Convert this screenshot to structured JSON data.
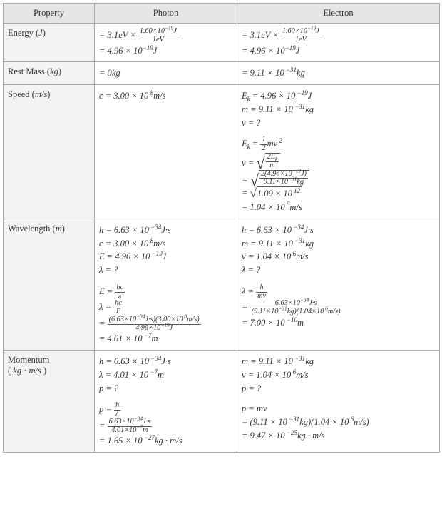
{
  "table": {
    "header_bg": "#e6e6e6",
    "prop_bg": "#f3f3f3",
    "border_color": "#aaaaaa",
    "columns": [
      "Property",
      "Photon",
      "Electron"
    ],
    "rows": [
      {
        "property": "Energy (J)",
        "photon": {
          "lines": [
            "= 3.1eV × (1.60×10⁻¹⁹ J / 1eV)",
            "= 4.96 × 10⁻¹⁹ J"
          ]
        },
        "electron": {
          "lines": [
            "= 3.1eV × (1.60×10⁻¹⁹ J / 1eV)",
            "= 4.96 × 10⁻¹⁹ J"
          ]
        }
      },
      {
        "property": "Rest Mass (kg)",
        "photon": {
          "lines": [
            "= 0 kg"
          ]
        },
        "electron": {
          "lines": [
            "= 9.11 × 10⁻³¹ kg"
          ]
        }
      },
      {
        "property": "Speed (m/s)",
        "photon": {
          "lines": [
            "c = 3.00 × 10⁸ m/s"
          ]
        },
        "electron": {
          "lines": [
            "E_k = 4.96 × 10⁻¹⁹ J",
            "m = 9.11 × 10⁻³¹ kg",
            "v = ?",
            "",
            "E_k = ½ m v²",
            "v = √(2E_k / m)",
            "= √(2(4.96×10⁻¹⁹ J) / 9.11×10⁻³¹ kg)",
            "= √(1.09 × 10¹²)",
            "= 1.04 × 10⁶ m/s"
          ]
        }
      },
      {
        "property": "Wavelength (m)",
        "photon": {
          "lines": [
            "h = 6.63 × 10⁻³⁴ J·s",
            "c = 3.00 × 10⁸ m/s",
            "E = 4.96 × 10⁻¹⁹ J",
            "λ = ?",
            "",
            "E = hc/λ",
            "λ = hc/E",
            "= (6.63×10⁻³⁴ J·s)(3.00×10⁸ m/s) / 4.96×10⁻¹⁹ J",
            "= 4.01 × 10⁻⁷ m"
          ]
        },
        "electron": {
          "lines": [
            "h = 6.63 × 10⁻³⁴ J·s",
            "m = 9.11 × 10⁻³¹ kg",
            "v = 1.04 × 10⁶ m/s",
            "λ = ?",
            "",
            "λ = h/(mv)",
            "= 6.63×10⁻³⁴ J·s / ((9.11×10⁻³¹ kg)(1.04×10⁶ m/s))",
            "= 7.00 × 10⁻¹⁰ m"
          ]
        }
      },
      {
        "property": "Momentum (kg·m/s)",
        "photon": {
          "lines": [
            "h = 6.63 × 10⁻³⁴ J·s",
            "λ = 4.01 × 10⁻⁷ m",
            "p = ?",
            "",
            "p = h/λ",
            "= 6.63×10⁻³⁴ J·s / 4.01×10⁻⁷ m",
            "= 1.65 × 10⁻²⁷ kg·m/s"
          ]
        },
        "electron": {
          "lines": [
            "m = 9.11 × 10⁻³¹ kg",
            "v = 1.04 × 10⁶ m/s",
            "p = ?",
            "",
            "p = mv",
            "= (9.11 × 10⁻³¹ kg)(1.04 × 10⁶ m/s)",
            "= 9.47 × 10⁻²⁵ kg·m/s"
          ]
        }
      }
    ]
  }
}
